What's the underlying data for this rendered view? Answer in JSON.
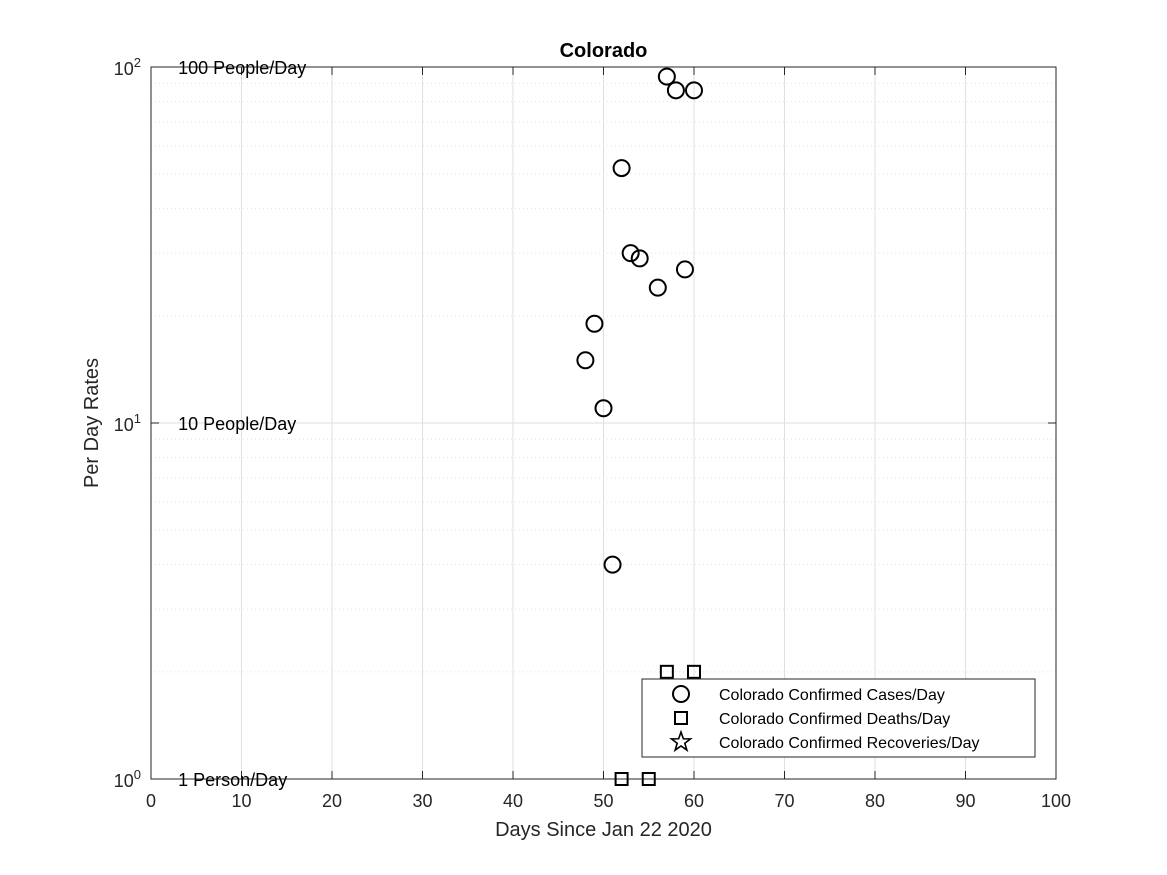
{
  "chart_data": {
    "type": "scatter",
    "title": "Colorado",
    "xlabel": "Days Since Jan 22 2020",
    "ylabel": "Per Day Rates",
    "xlim": [
      0,
      100
    ],
    "ylim": [
      1,
      100
    ],
    "y_scale": "log",
    "grid": true,
    "minor_grid": true,
    "x_ticks": [
      0,
      10,
      20,
      30,
      40,
      50,
      60,
      70,
      80,
      90,
      100
    ],
    "y_ticks": [
      {
        "value": 1,
        "base": "10",
        "exp": "0"
      },
      {
        "value": 10,
        "base": "10",
        "exp": "1"
      },
      {
        "value": 100,
        "base": "10",
        "exp": "2"
      }
    ],
    "annotations": [
      {
        "text": "100 People/Day",
        "x": 3,
        "y": 100
      },
      {
        "text": "10 People/Day",
        "x": 3,
        "y": 10
      },
      {
        "text": "1 Person/Day",
        "x": 3,
        "y": 1
      }
    ],
    "legend_position": "bottom-right",
    "series": [
      {
        "name": "Colorado Confirmed Cases/Day",
        "marker": "circle",
        "color": "#000000",
        "points": [
          {
            "x": 48,
            "y": 15
          },
          {
            "x": 49,
            "y": 19
          },
          {
            "x": 50,
            "y": 11
          },
          {
            "x": 51,
            "y": 4
          },
          {
            "x": 52,
            "y": 52
          },
          {
            "x": 53,
            "y": 30
          },
          {
            "x": 54,
            "y": 29
          },
          {
            "x": 56,
            "y": 24
          },
          {
            "x": 57,
            "y": 94
          },
          {
            "x": 58,
            "y": 86
          },
          {
            "x": 59,
            "y": 27
          },
          {
            "x": 60,
            "y": 86
          }
        ]
      },
      {
        "name": "Colorado Confirmed Deaths/Day",
        "marker": "square",
        "color": "#000000",
        "points": [
          {
            "x": 52,
            "y": 1
          },
          {
            "x": 55,
            "y": 1
          },
          {
            "x": 57,
            "y": 2
          },
          {
            "x": 60,
            "y": 2
          }
        ]
      },
      {
        "name": "Colorado Confirmed Recoveries/Day",
        "marker": "star",
        "color": "#000000",
        "points": []
      }
    ]
  }
}
